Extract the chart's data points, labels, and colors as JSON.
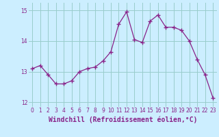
{
  "x": [
    0,
    1,
    2,
    3,
    4,
    5,
    6,
    7,
    8,
    9,
    10,
    11,
    12,
    13,
    14,
    15,
    16,
    17,
    18,
    19,
    20,
    21,
    22,
    23
  ],
  "y": [
    13.1,
    13.2,
    12.9,
    12.6,
    12.6,
    12.7,
    13.0,
    13.1,
    13.15,
    13.35,
    13.65,
    14.55,
    14.95,
    14.05,
    13.95,
    14.65,
    14.85,
    14.45,
    14.45,
    14.35,
    14.0,
    13.4,
    12.9,
    12.15
  ],
  "line_color": "#882288",
  "marker": "+",
  "marker_size": 4,
  "marker_lw": 1.0,
  "bg_color": "#cceeff",
  "grid_color": "#99cccc",
  "xlabel": "Windchill (Refroidissement éolien,°C)",
  "xlabel_color": "#882288",
  "tick_color": "#882288",
  "ylim": [
    11.85,
    15.25
  ],
  "yticks": [
    12,
    13,
    14,
    15
  ],
  "xlim": [
    -0.5,
    23.5
  ],
  "xticks": [
    0,
    1,
    2,
    3,
    4,
    5,
    6,
    7,
    8,
    9,
    10,
    11,
    12,
    13,
    14,
    15,
    16,
    17,
    18,
    19,
    20,
    21,
    22,
    23
  ],
  "tick_fontsize": 5.5,
  "xlabel_fontsize": 7.0,
  "linewidth": 0.9
}
